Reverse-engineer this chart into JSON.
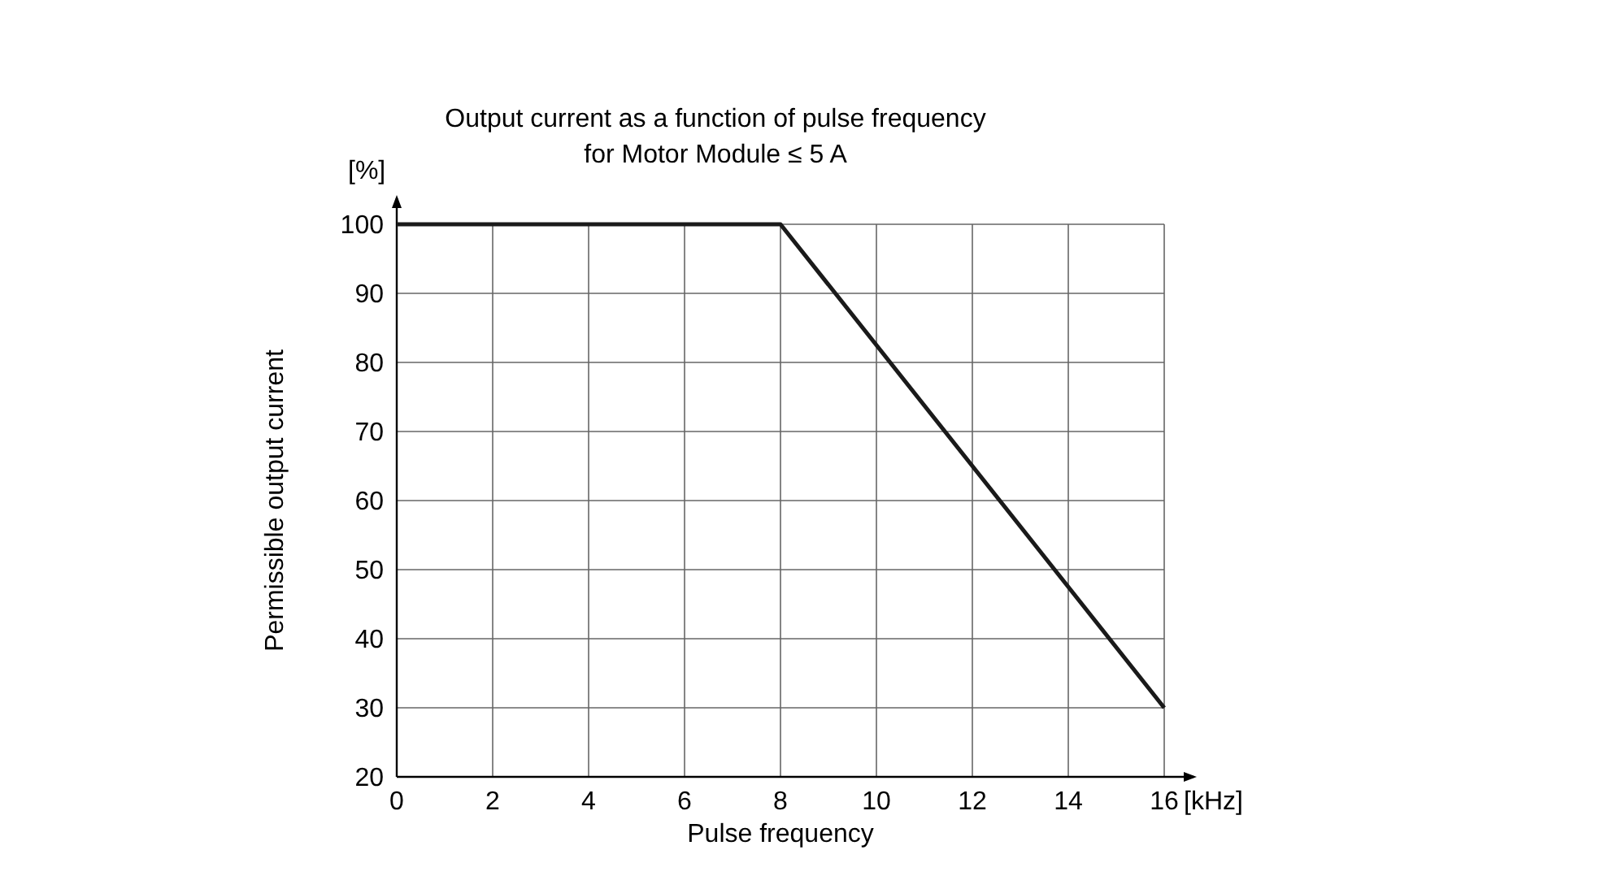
{
  "chart_data": {
    "type": "line",
    "title": "Output current as a function of pulse frequency",
    "subtitle": "for Motor Module ≤ 5 A",
    "xlabel": "Pulse frequency",
    "ylabel": "Permissible output current",
    "annotations": [
      "[%]",
      "[kHz]"
    ],
    "x": [
      0,
      8,
      16
    ],
    "series": [
      {
        "color": "#1a1a1a",
        "values": [
          100,
          100,
          30
        ]
      }
    ],
    "xlim": [
      0,
      16
    ],
    "xticks": [
      0,
      2,
      4,
      6,
      8,
      10,
      12,
      14,
      16
    ],
    "ylim": [
      20,
      100
    ],
    "yticks": [
      20,
      30,
      40,
      50,
      60,
      70,
      80,
      90,
      100
    ],
    "grid": true,
    "marker": "none",
    "line_style": "solid"
  }
}
